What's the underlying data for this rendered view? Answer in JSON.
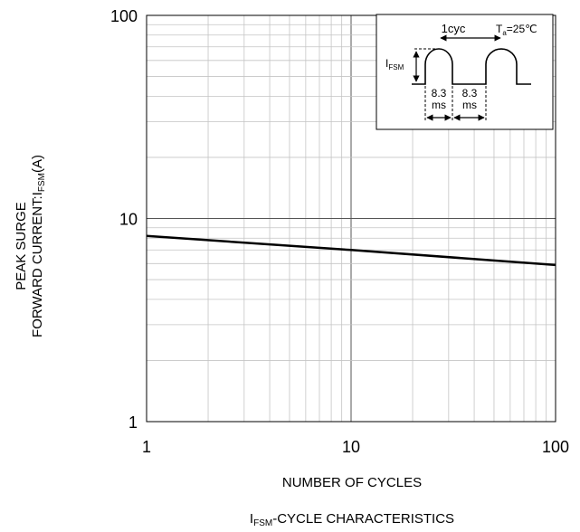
{
  "chart_data": {
    "type": "line",
    "x_scale": "log",
    "y_scale": "log",
    "xlim": [
      1,
      100
    ],
    "ylim": [
      1,
      100
    ],
    "grid": true,
    "x_ticks": [
      1,
      10,
      100
    ],
    "y_ticks": [
      1,
      10,
      100
    ],
    "x_tick_labels": [
      "1",
      "10",
      "100"
    ],
    "y_tick_labels": [
      "1",
      "10",
      "100"
    ],
    "xlabel": "NUMBER OF CYCLES",
    "ylabel_line1": "PEAK SURGE",
    "ylabel_line2_prefix": "FORWARD CURRENT:I",
    "ylabel_line2_sub": "FSM",
    "ylabel_line2_suffix": "(A)",
    "caption_prefix": "I",
    "caption_sub": "FSM",
    "caption_suffix": "-CYCLE CHARACTERISTICS",
    "series": [
      {
        "x": [
          1,
          10,
          100
        ],
        "y": [
          8.2,
          7.0,
          5.9
        ]
      }
    ],
    "inset": {
      "cycle_label": "1cyc",
      "temp_prefix": "T",
      "temp_sub": "a",
      "temp_suffix": "=25℃",
      "current_prefix": "I",
      "current_sub": "FSM",
      "period_value": "8.3",
      "period_unit": "ms"
    }
  }
}
